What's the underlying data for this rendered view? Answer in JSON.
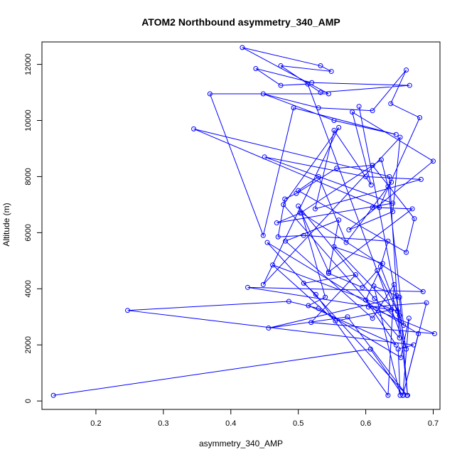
{
  "chart_data": {
    "type": "line",
    "title": "ATOM2 Northbound asymmetry_340_AMP",
    "xlabel": "asymmetry_340_AMP",
    "ylabel": "Altitude (m)",
    "xlim": [
      0.12,
      0.71
    ],
    "ylim": [
      -300,
      12800
    ],
    "x_ticks": [
      0.2,
      0.3,
      0.4,
      0.5,
      0.6,
      0.7
    ],
    "x_tick_labels": [
      "0.2",
      "0.3",
      "0.4",
      "0.5",
      "0.6",
      "0.7"
    ],
    "y_ticks": [
      0,
      2000,
      4000,
      6000,
      8000,
      10000,
      12000
    ],
    "y_tick_labels": [
      "0",
      "2000",
      "4000",
      "6000",
      "8000",
      "10000",
      "12000"
    ],
    "line_color": "#0000ff",
    "marker": "open-circle",
    "grid": false,
    "series": [
      {
        "x": [
          0.137,
          0.607,
          0.655,
          0.664,
          0.652,
          0.53,
          0.486,
          0.247,
          0.671,
          0.648,
          0.651,
          0.612,
          0.646,
          0.662,
          0.65,
          0.456,
          0.573,
          0.661,
          0.454,
          0.678,
          0.655,
          0.69,
          0.604,
          0.702,
          0.519,
          0.585,
          0.508,
          0.526,
          0.633,
          0.642,
          0.61,
          0.481,
          0.56,
          0.545,
          0.595,
          0.617,
          0.647,
          0.462,
          0.555,
          0.638,
          0.425,
          0.685,
          0.505,
          0.54,
          0.515,
          0.645,
          0.6,
          0.625,
          0.553,
          0.65,
          0.622,
          0.633,
          0.508,
          0.47,
          0.48,
          0.497,
          0.557,
          0.61,
          0.672,
          0.66,
          0.5,
          0.53,
          0.571,
          0.638,
          0.61,
          0.669,
          0.545,
          0.5,
          0.613,
          0.656,
          0.633,
          0.623,
          0.503,
          0.468,
          0.64,
          0.45,
          0.6,
          0.682,
          0.525,
          0.553,
          0.608,
          0.58,
          0.7,
          0.575,
          0.64,
          0.651,
          0.448,
          0.56,
          0.478,
          0.65,
          0.635,
          0.345,
          0.62,
          0.68,
          0.637,
          0.66,
          0.61,
          0.53,
          0.448,
          0.553,
          0.645,
          0.493,
          0.448,
          0.369,
          0.545,
          0.417,
          0.533,
          0.549,
          0.474,
          0.533,
          0.665,
          0.52,
          0.437,
          0.474,
          0.514,
          0.66,
          0.59
        ],
        "y": [
          200,
          1850,
          200,
          2950,
          1550,
          3300,
          3550,
          3230,
          2000,
          1850,
          200,
          4100,
          3750,
          200,
          3700,
          2600,
          3000,
          200,
          5650,
          2400,
          200,
          3500,
          3350,
          2400,
          2800,
          4500,
          4200,
          3800,
          200,
          4150,
          2950,
          5700,
          6450,
          4550,
          4050,
          4650,
          3200,
          4850,
          2850,
          3250,
          4050,
          3900,
          6700,
          3700,
          3400,
          2000,
          3600,
          4900,
          5500,
          3050,
          4800,
          5700,
          5900,
          5850,
          7200,
          7400,
          8300,
          8400,
          6500,
          5300,
          7500,
          8000,
          5650,
          7800,
          6900,
          6850,
          4600,
          6950,
          3650,
          2700,
          7650,
          8600,
          6700,
          6350,
          7050,
          8700,
          8000,
          7900,
          6850,
          9650,
          7700,
          10300,
          8550,
          6100,
          6750,
          9400,
          4150,
          9750,
          7000,
          2250,
          8000,
          9700,
          6900,
          10100,
          10600,
          11800,
          10350,
          10450,
          10950,
          10000,
          9500,
          10450,
          5900,
          10950,
          10950,
          12600,
          11950,
          11750,
          11950,
          11000,
          11250,
          11350,
          11850,
          11250,
          11300,
          1850,
          10500
        ]
      }
    ]
  }
}
